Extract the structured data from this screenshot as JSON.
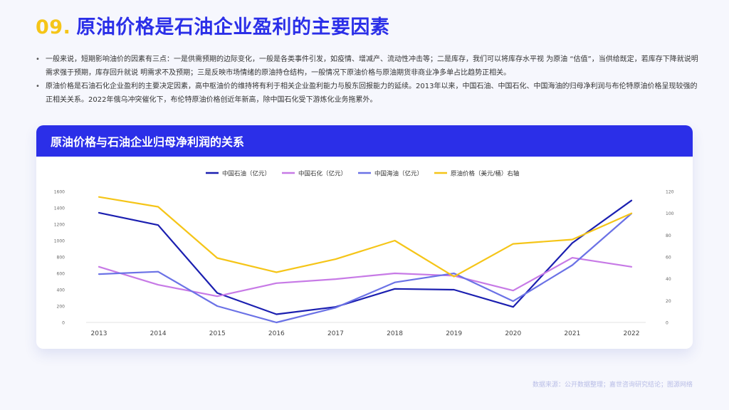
{
  "header": {
    "number": "09.",
    "title": "原油价格是石油企业盈利的主要因素"
  },
  "bullets": [
    "一般来说，短期影响油价的因素有三点：一是供需预期的边际变化，一般是各类事件引发，如疫情、增减产、流动性冲击等；二是库存，我们可以将库存水平视  为原油 “估值”，当供给既定，若库存下降就说明需求强于预期，库存回升就说 明需求不及预期；三是反映市场情绪的原油持仓结构，一般情况下原油价格与原油期货非商业净多单占比趋势正相关。",
    "原油价格是石油石化企业盈利的主要决定因素，高中枢油价的维持将有利于相关企业盈利能力与股东回报能力的延续。2013年以来，中国石油、中国石化、中国海油的归母净利润与布伦特原油价格呈现较强的正相关关系。2022年俄乌冲突催化下，布伦特原油价格创近年新高，除中国石化受下游炼化业务拖累外。"
  ],
  "chart_title": "原油价格与石油企业归母净利润的关系",
  "source": "数据来源：公开数据整理；嘉世咨询研究结论；图源网络",
  "chart_data": {
    "type": "line",
    "categories": [
      "2013",
      "2014",
      "2015",
      "2016",
      "2017",
      "2018",
      "2019",
      "2020",
      "2021",
      "2022"
    ],
    "left_axis": {
      "min": 0,
      "max": 1600,
      "ticks": [
        "0",
        "200",
        "400",
        "600",
        "800",
        "1000",
        "1200",
        "1400",
        "1600"
      ]
    },
    "right_axis": {
      "min": 0,
      "max": 120,
      "ticks": [
        "0",
        "20",
        "40",
        "60",
        "80",
        "100",
        "120"
      ]
    },
    "series": [
      {
        "name": "中国石油（亿元）",
        "color": "#1b1fb0",
        "axis": "left",
        "values": [
          1340,
          1190,
          360,
          100,
          190,
          410,
          400,
          190,
          970,
          1490
        ]
      },
      {
        "name": "中国石化（亿元）",
        "color": "#c77ae6",
        "axis": "left",
        "values": [
          680,
          460,
          320,
          480,
          530,
          600,
          570,
          390,
          790,
          680
        ]
      },
      {
        "name": "中国海油（亿元）",
        "color": "#6b72e6",
        "axis": "left",
        "values": [
          590,
          620,
          200,
          0,
          180,
          490,
          600,
          260,
          700,
          1330
        ]
      },
      {
        "name": "原油价格（美元/桶）右轴",
        "color": "#f5c518",
        "axis": "right",
        "values": [
          115,
          106,
          59,
          46,
          58,
          75,
          42,
          72,
          76,
          100
        ]
      }
    ],
    "grid": false,
    "legend": "top-center"
  }
}
